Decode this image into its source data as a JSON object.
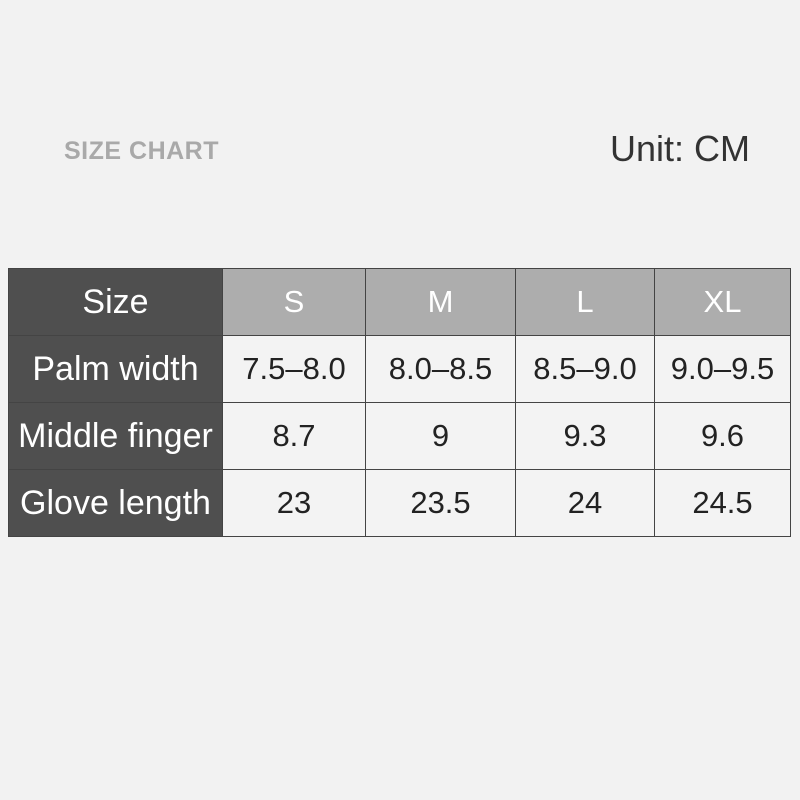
{
  "header": {
    "title": "SIZE CHART",
    "unit": "Unit: CM"
  },
  "table": {
    "corner": "Size",
    "columns": [
      "S",
      "M",
      "L",
      "XL"
    ],
    "rows": [
      {
        "label": "Palm width",
        "values": [
          "7.5–8.0",
          "8.0–8.5",
          "8.5–9.0",
          "9.0–9.5"
        ]
      },
      {
        "label": "Middle finger",
        "values": [
          "8.7",
          "9",
          "9.3",
          "9.6"
        ]
      },
      {
        "label": "Glove length",
        "values": [
          "23",
          "23.5",
          "24",
          "24.5"
        ]
      }
    ]
  },
  "colors": {
    "background": "#f2f2f2",
    "row_header": "#4f4f4f",
    "column_header": "#adadad"
  }
}
